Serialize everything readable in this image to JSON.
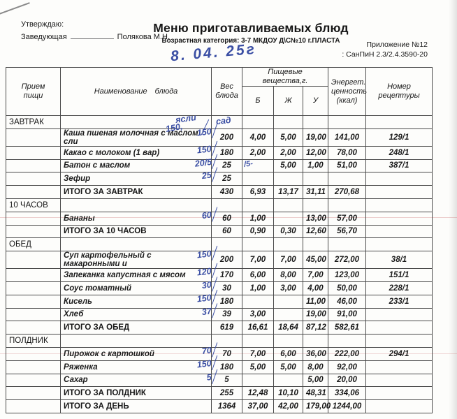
{
  "document": {
    "approve": "Утверждаю:",
    "head_role": "Заведующая",
    "head_name": "Полякова М.Н.",
    "title": "Меню приготавливаемых блюд",
    "subtitle": "Возрастная категория: 3-7 МКДОУ Д\\С№10 г.ПЛАСТА",
    "appendix": "Приложение №12",
    "regulation": ": СанПиН 2.3/2.4.3590-20",
    "handwritten_date": "8. 04. 25г",
    "ink_color": "#3b4fa4"
  },
  "table": {
    "headers": {
      "meal": "Прием\nпищи",
      "dish": "Наименование блюда",
      "weight": "Вес\nблюда",
      "nutrients": "Пищевые вещества,г.",
      "protein": "Б",
      "fat": "Ж",
      "carbs": "У",
      "energy": "Энергет.\nценность\n(ккал)",
      "recipe": "Номер\nрецептуры"
    },
    "section_note": {
      "line1": "ясли",
      "line2": "150,",
      "line3": "сад"
    },
    "rows": [
      {
        "type": "section",
        "meal": "ЗАВТРАК",
        "note": true
      },
      {
        "type": "dish",
        "name": "Каша пшеная молочная с маслом сли",
        "hw": "150",
        "weight": "200",
        "b": "4,00",
        "f": "5,00",
        "c": "19,00",
        "kcal": "141,00",
        "recipe": "129/1"
      },
      {
        "type": "dish",
        "name": "Какао с молоком (1 вар)",
        "hw": "150",
        "weight": "180",
        "b": "2,00",
        "f": "2,00",
        "c": "12,00",
        "kcal": "78,00",
        "recipe": "248/1"
      },
      {
        "type": "dish",
        "name": "Батон с маслом",
        "hw": "20/5",
        "hw_w": "/5-",
        "weight": "25",
        "b": "",
        "f": "5,00",
        "c": "1,00",
        "kcal": "51,00",
        "recipe": "387/1"
      },
      {
        "type": "dish",
        "name": "Зефир",
        "hw": "25",
        "weight": "25",
        "b": "",
        "f": "",
        "c": "",
        "kcal": "",
        "recipe": ""
      },
      {
        "type": "total",
        "name": "ИТОГО ЗА ЗАВТРАК",
        "weight": "430",
        "b": "6,93",
        "f": "13,17",
        "c": "31,11",
        "kcal": "270,68",
        "recipe": ""
      },
      {
        "type": "section",
        "meal": "10 ЧАСОВ"
      },
      {
        "type": "dish",
        "name": "Бананы",
        "hw": "60",
        "weight": "60",
        "b": "1,00",
        "f": "",
        "c": "13,00",
        "kcal": "57,00",
        "recipe": ""
      },
      {
        "type": "total",
        "name": "ИТОГО ЗА 10 ЧАСОВ",
        "weight": "60",
        "b": "0,90",
        "f": "0,30",
        "c": "12,60",
        "kcal": "56,70",
        "recipe": ""
      },
      {
        "type": "section",
        "meal": "ОБЕД"
      },
      {
        "type": "dish",
        "name": "Суп картофельный с макаронными и",
        "hw": "150",
        "weight": "200",
        "b": "7,00",
        "f": "7,00",
        "c": "45,00",
        "kcal": "272,00",
        "recipe": "38/1"
      },
      {
        "type": "dish",
        "name": "Запеканка капустная с мясом",
        "hw": "120",
        "weight": "170",
        "b": "6,00",
        "f": "8,00",
        "c": "7,00",
        "kcal": "123,00",
        "recipe": "151/1"
      },
      {
        "type": "dish",
        "name": "Соус томатный",
        "hw": "30",
        "weight": "30",
        "b": "1,00",
        "f": "3,00",
        "c": "4,00",
        "kcal": "50,00",
        "recipe": "228/1"
      },
      {
        "type": "dish",
        "name": "Кисель",
        "hw": "150",
        "weight": "180",
        "b": "",
        "f": "",
        "c": "11,00",
        "kcal": "46,00",
        "recipe": "233/1"
      },
      {
        "type": "dish",
        "name": "Хлеб",
        "hw": "37",
        "weight": "39",
        "b": "3,00",
        "f": "",
        "c": "19,00",
        "kcal": "91,00",
        "recipe": ""
      },
      {
        "type": "total",
        "name": "ИТОГО ЗА ОБЕД",
        "weight": "619",
        "b": "16,61",
        "f": "18,64",
        "c": "87,12",
        "kcal": "582,61",
        "recipe": ""
      },
      {
        "type": "section",
        "meal": "ПОЛДНИК"
      },
      {
        "type": "dish",
        "name": "Пирожок с картошкой",
        "hw": "70",
        "weight": "70",
        "b": "7,00",
        "f": "6,00",
        "c": "36,00",
        "kcal": "222,00",
        "recipe": "294/1"
      },
      {
        "type": "dish",
        "name": "Ряженка",
        "hw": "150",
        "weight": "180",
        "b": "5,00",
        "f": "5,00",
        "c": "8,00",
        "kcal": "92,00",
        "recipe": ""
      },
      {
        "type": "dish",
        "name": "Сахар",
        "hw": "5",
        "weight": "5",
        "b": "",
        "f": "",
        "c": "5,00",
        "kcal": "20,00",
        "recipe": ""
      },
      {
        "type": "total",
        "name": "ИТОГО ЗА ПОЛДНИК",
        "weight": "255",
        "b": "12,48",
        "f": "10,10",
        "c": "48,31",
        "kcal": "334,06",
        "recipe": ""
      },
      {
        "type": "total",
        "name": "ИТОГО ЗА ДЕНЬ",
        "weight": "1364",
        "b": "37,00",
        "f": "42,00",
        "c": "179,00",
        "kcal": "1244,00",
        "recipe": ""
      }
    ]
  }
}
